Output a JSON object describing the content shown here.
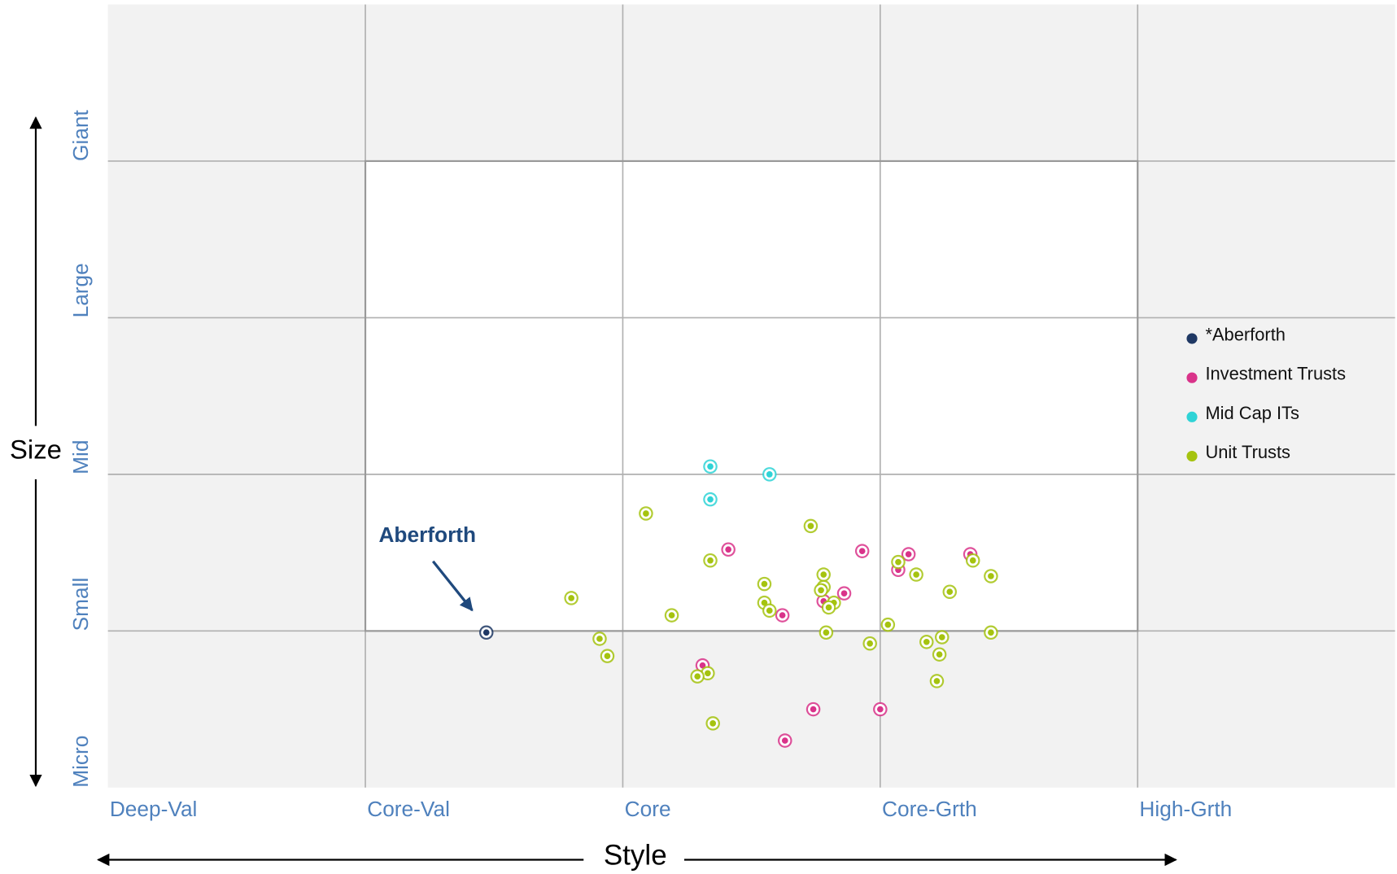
{
  "chart_data": {
    "type": "scatter",
    "xlabel": "Style",
    "ylabel": "Size",
    "annotation": "Aberforth",
    "xlim": [
      0,
      5
    ],
    "ylim": [
      0,
      5
    ],
    "xticks": [
      {
        "value": 0,
        "label": "Deep-Val"
      },
      {
        "value": 1,
        "label": "Core-Val"
      },
      {
        "value": 2,
        "label": "Core"
      },
      {
        "value": 3,
        "label": "Core-Grth"
      },
      {
        "value": 4,
        "label": "High-Grth"
      }
    ],
    "yticks": [
      {
        "value": 0,
        "label": "Micro"
      },
      {
        "value": 1,
        "label": "Small"
      },
      {
        "value": 2,
        "label": "Mid"
      },
      {
        "value": 3,
        "label": "Large"
      },
      {
        "value": 4,
        "label": "Giant"
      }
    ],
    "grid": true,
    "legend": "right",
    "series": [
      {
        "name": "*Aberforth",
        "color": "#1f3864",
        "x": [
          1.47
        ],
        "values": [
          0.99
        ]
      },
      {
        "name": "Investment Trusts",
        "color": "#d9338a",
        "x": [
          2.41,
          2.93,
          3.11,
          3.35,
          3.07,
          2.86,
          2.78,
          2.62,
          2.31,
          2.74,
          3.0,
          2.63
        ],
        "values": [
          1.52,
          1.51,
          1.49,
          1.49,
          1.39,
          1.24,
          1.19,
          1.1,
          0.78,
          0.5,
          0.5,
          0.3
        ]
      },
      {
        "name": "Mid Cap ITs",
        "color": "#2fd3d6",
        "x": [
          2.34,
          2.57,
          2.34
        ],
        "values": [
          2.05,
          2.0,
          1.84
        ]
      },
      {
        "name": "Unit Trusts",
        "color": "#a5c30f",
        "x": [
          2.09,
          2.73,
          2.34,
          3.07,
          3.36,
          3.14,
          3.43,
          2.78,
          2.55,
          2.78,
          2.77,
          3.27,
          1.8,
          2.55,
          2.82,
          2.8,
          2.57,
          2.19,
          3.03,
          2.79,
          3.43,
          1.91,
          2.96,
          3.24,
          3.18,
          1.94,
          3.23,
          2.33,
          2.29,
          3.22,
          2.35
        ],
        "values": [
          1.75,
          1.67,
          1.45,
          1.44,
          1.45,
          1.36,
          1.35,
          1.36,
          1.3,
          1.28,
          1.26,
          1.25,
          1.21,
          1.18,
          1.18,
          1.15,
          1.13,
          1.1,
          1.04,
          0.99,
          0.99,
          0.95,
          0.92,
          0.96,
          0.93,
          0.84,
          0.85,
          0.73,
          0.71,
          0.68,
          0.41
        ]
      }
    ]
  }
}
